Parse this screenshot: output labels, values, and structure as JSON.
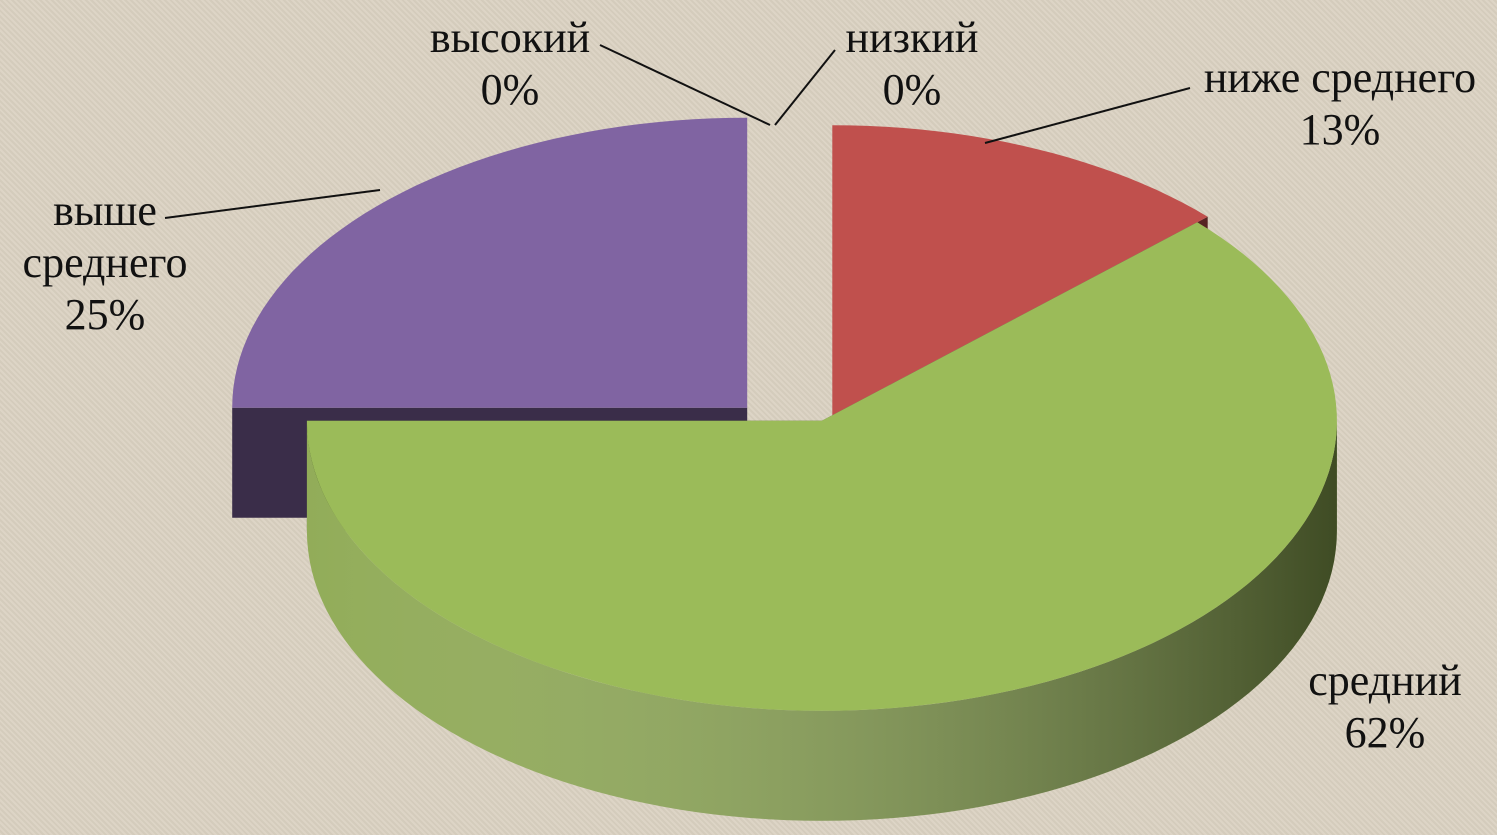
{
  "chart_data": {
    "type": "pie3d",
    "categories": [
      "низкий",
      "ниже среднего",
      "средний",
      "выше среднего",
      "высокий"
    ],
    "values": [
      0,
      13,
      62,
      25,
      0
    ],
    "value_labels": [
      "0%",
      "13%",
      "62%",
      "25%",
      "0%"
    ],
    "colors": [
      "#4f81bd",
      "#c0504d",
      "#9bbb59",
      "#8064a2",
      "#4bacc6"
    ]
  }
}
